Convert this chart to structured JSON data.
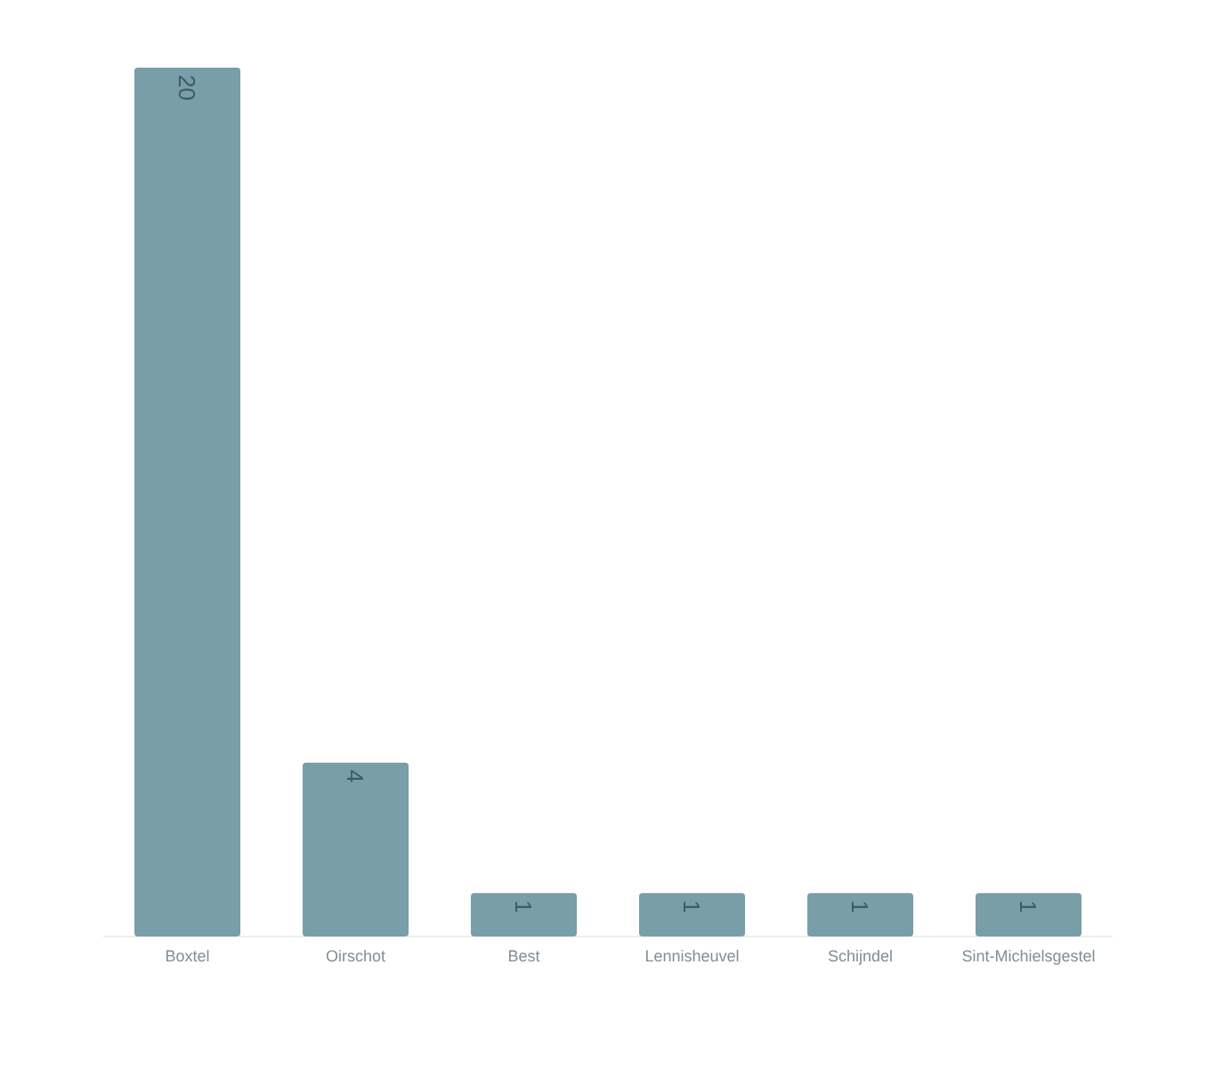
{
  "chart_data": {
    "type": "bar",
    "categories": [
      "Boxtel",
      "Oirschot",
      "Best",
      "Lennisheuvel",
      "Schijndel",
      "Sint-Michielsgestel"
    ],
    "values": [
      20,
      4,
      1,
      1,
      1,
      1
    ],
    "color": "#789ea8",
    "ylim": [
      0,
      20
    ],
    "data_labels": true
  }
}
